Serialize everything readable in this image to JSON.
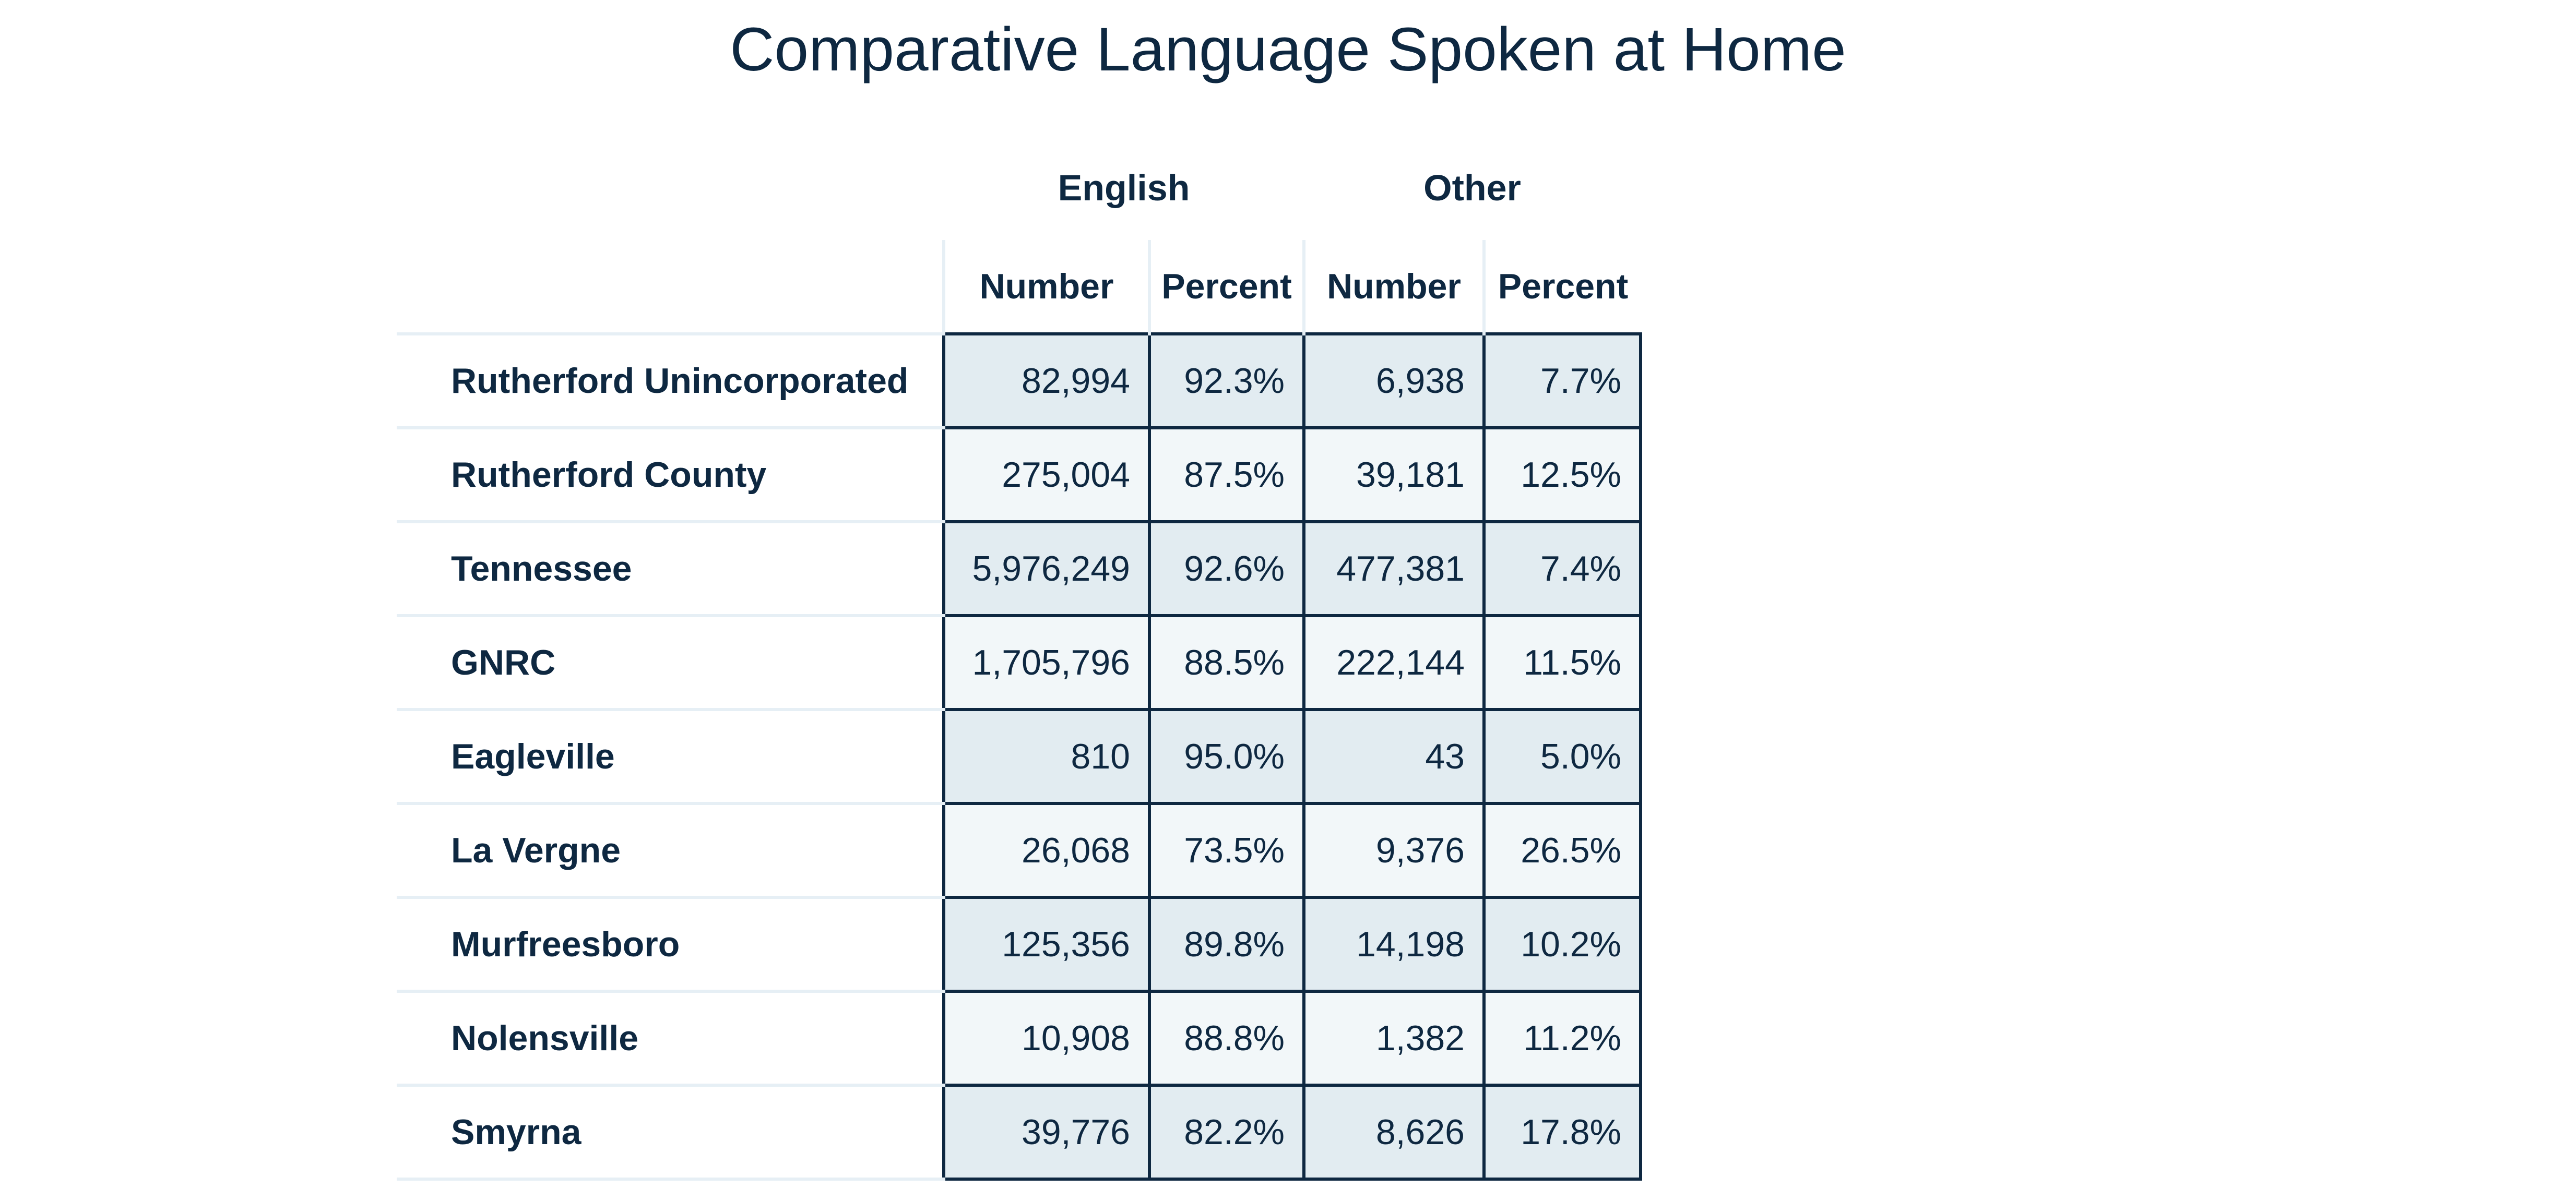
{
  "title": "Comparative Language Spoken at Home",
  "groups": {
    "english": "English",
    "other": "Other"
  },
  "columns": {
    "en_number": "Number",
    "en_percent": "Percent",
    "ot_number": "Number",
    "ot_percent": "Percent"
  },
  "rows": [
    {
      "name": "Rutherford Unincorporated",
      "en_number": "82,994",
      "en_percent": "92.3%",
      "ot_number": "6,938",
      "ot_percent": "7.7%"
    },
    {
      "name": "Rutherford County",
      "en_number": "275,004",
      "en_percent": "87.5%",
      "ot_number": "39,181",
      "ot_percent": "12.5%"
    },
    {
      "name": "Tennessee",
      "en_number": "5,976,249",
      "en_percent": "92.6%",
      "ot_number": "477,381",
      "ot_percent": "7.4%"
    },
    {
      "name": "GNRC",
      "en_number": "1,705,796",
      "en_percent": "88.5%",
      "ot_number": "222,144",
      "ot_percent": "11.5%"
    },
    {
      "name": "Eagleville",
      "en_number": "810",
      "en_percent": "95.0%",
      "ot_number": "43",
      "ot_percent": "5.0%"
    },
    {
      "name": "La Vergne",
      "en_number": "26,068",
      "en_percent": "73.5%",
      "ot_number": "9,376",
      "ot_percent": "26.5%"
    },
    {
      "name": "Murfreesboro",
      "en_number": "125,356",
      "en_percent": "89.8%",
      "ot_number": "14,198",
      "ot_percent": "10.2%"
    },
    {
      "name": "Nolensville",
      "en_number": "10,908",
      "en_percent": "88.8%",
      "ot_number": "1,382",
      "ot_percent": "11.2%"
    },
    {
      "name": "Smyrna",
      "en_number": "39,776",
      "en_percent": "82.2%",
      "ot_number": "8,626",
      "ot_percent": "17.8%"
    }
  ]
}
